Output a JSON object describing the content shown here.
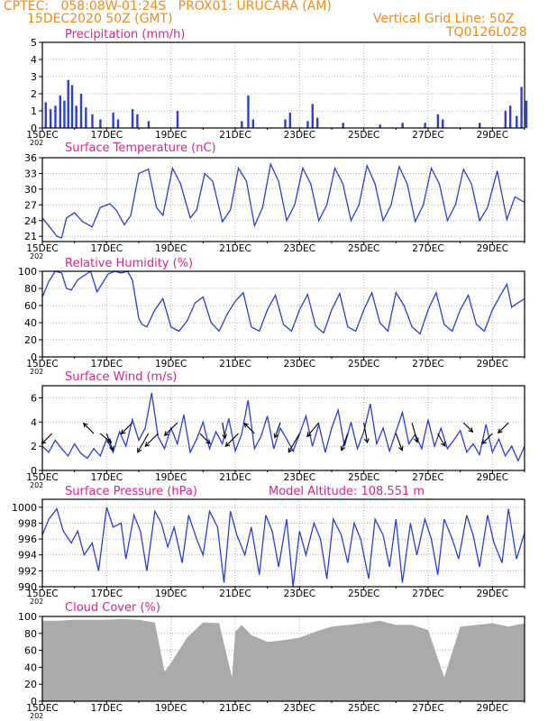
{
  "header": {
    "line1_left": "CPTEC:   058:08W-01:24S   PROX01: URUCARA (AM)",
    "line2_left": "15DEC2020 50Z (GMT)",
    "line2_right": "Vertical Grid Line: 50Z",
    "line3_right": "TQ0126L028"
  },
  "colors": {
    "header": "#f08a1c",
    "title": "#e0228a",
    "series": "#2b3fd8",
    "cloud": "#aaaaaa",
    "grid": "#b0b0b0",
    "arrow": "#000000"
  },
  "x_axis": {
    "tick_labels": [
      "15DEC",
      "17DEC",
      "19DEC",
      "21DEC",
      "23DEC",
      "25DEC",
      "27DEC",
      "29DEC"
    ],
    "year_fragment": "202"
  },
  "chart_data": [
    {
      "type": "bar",
      "title": "Precipitation (mm/h)",
      "ylim": [
        0,
        5
      ],
      "yticks": [
        0,
        1,
        2,
        3,
        4,
        5
      ],
      "grid": true,
      "bars": [
        {
          "day": 0.1,
          "v": 1.5
        },
        {
          "day": 0.25,
          "v": 1.1
        },
        {
          "day": 0.4,
          "v": 1.3
        },
        {
          "day": 0.55,
          "v": 1.9
        },
        {
          "day": 0.68,
          "v": 1.6
        },
        {
          "day": 0.8,
          "v": 2.8
        },
        {
          "day": 0.92,
          "v": 2.5
        },
        {
          "day": 1.05,
          "v": 1.3
        },
        {
          "day": 1.2,
          "v": 2.0
        },
        {
          "day": 1.35,
          "v": 1.2
        },
        {
          "day": 1.55,
          "v": 0.8
        },
        {
          "day": 1.8,
          "v": 0.5
        },
        {
          "day": 2.2,
          "v": 0.9
        },
        {
          "day": 2.35,
          "v": 0.5
        },
        {
          "day": 2.8,
          "v": 1.1
        },
        {
          "day": 2.95,
          "v": 0.8
        },
        {
          "day": 3.3,
          "v": 0.4
        },
        {
          "day": 4.2,
          "v": 1.0
        },
        {
          "day": 6.2,
          "v": 0.4
        },
        {
          "day": 6.4,
          "v": 1.9
        },
        {
          "day": 6.55,
          "v": 0.5
        },
        {
          "day": 7.55,
          "v": 0.5
        },
        {
          "day": 7.7,
          "v": 0.9
        },
        {
          "day": 8.25,
          "v": 0.4
        },
        {
          "day": 8.4,
          "v": 1.4
        },
        {
          "day": 8.55,
          "v": 0.6
        },
        {
          "day": 9.35,
          "v": 0.3
        },
        {
          "day": 10.5,
          "v": 0.2
        },
        {
          "day": 11.2,
          "v": 0.3
        },
        {
          "day": 11.9,
          "v": 0.3
        },
        {
          "day": 12.3,
          "v": 0.8
        },
        {
          "day": 12.45,
          "v": 0.5
        },
        {
          "day": 13.6,
          "v": 0.3
        },
        {
          "day": 14.4,
          "v": 1.0
        },
        {
          "day": 14.55,
          "v": 1.3
        },
        {
          "day": 14.75,
          "v": 0.7
        },
        {
          "day": 14.9,
          "v": 2.4
        },
        {
          "day": 15.05,
          "v": 1.6
        }
      ]
    },
    {
      "type": "line",
      "title": "Surface Temperature (nC)",
      "ylim": [
        20,
        36
      ],
      "yticks": [
        21,
        24,
        27,
        30,
        33,
        36
      ],
      "grid": true,
      "x": [
        0,
        0.2,
        0.45,
        0.6,
        0.75,
        1.0,
        1.25,
        1.55,
        1.8,
        2.1,
        2.3,
        2.55,
        2.75,
        3.0,
        3.3,
        3.55,
        3.75,
        4.05,
        4.3,
        4.6,
        4.8,
        5.05,
        5.3,
        5.6,
        5.85,
        6.1,
        6.35,
        6.6,
        6.85,
        7.1,
        7.35,
        7.6,
        7.85,
        8.1,
        8.35,
        8.6,
        8.85,
        9.1,
        9.35,
        9.6,
        9.85,
        10.1,
        10.35,
        10.6,
        10.85,
        11.1,
        11.35,
        11.6,
        11.85,
        12.1,
        12.35,
        12.6,
        12.85,
        13.1,
        13.35,
        13.6,
        13.85,
        14.15,
        14.45,
        14.7,
        15.0
      ],
      "y": [
        24.5,
        23.0,
        21.0,
        20.7,
        24.5,
        25.5,
        23.8,
        22.8,
        26.5,
        27.2,
        26.0,
        23.2,
        25.0,
        33.0,
        33.8,
        26.5,
        25.0,
        34.0,
        31.0,
        24.5,
        26.0,
        33.0,
        31.5,
        23.8,
        26.0,
        34.0,
        31.5,
        23.0,
        26.5,
        34.8,
        31.5,
        24.0,
        27.0,
        34.0,
        31.0,
        24.0,
        27.0,
        34.0,
        31.0,
        24.0,
        27.0,
        34.5,
        31.0,
        24.0,
        27.0,
        34.3,
        31.0,
        23.8,
        27.0,
        34.0,
        31.0,
        24.0,
        27.0,
        33.8,
        31.0,
        24.0,
        26.5,
        33.5,
        24.2,
        28.5,
        27.5
      ]
    },
    {
      "type": "line",
      "title": "Relative Humidity (%)",
      "ylim": [
        0,
        100
      ],
      "yticks": [
        0,
        20,
        40,
        60,
        80,
        100
      ],
      "grid": true,
      "x": [
        0,
        0.2,
        0.4,
        0.6,
        0.75,
        0.9,
        1.1,
        1.3,
        1.5,
        1.7,
        1.85,
        2.05,
        2.25,
        2.45,
        2.65,
        2.8,
        3.0,
        3.1,
        3.25,
        3.5,
        3.75,
        4.0,
        4.25,
        4.5,
        4.75,
        5.0,
        5.25,
        5.5,
        5.75,
        6.0,
        6.25,
        6.5,
        6.75,
        7.0,
        7.25,
        7.5,
        7.75,
        8.0,
        8.25,
        8.5,
        8.75,
        9.0,
        9.25,
        9.5,
        9.75,
        10.0,
        10.25,
        10.5,
        10.75,
        11.0,
        11.25,
        11.5,
        11.75,
        12.0,
        12.25,
        12.5,
        12.75,
        13.0,
        13.25,
        13.5,
        13.75,
        14.0,
        14.25,
        14.45,
        14.6,
        14.75,
        15.0
      ],
      "y": [
        70,
        88,
        100,
        98,
        80,
        78,
        90,
        95,
        100,
        76,
        85,
        97,
        100,
        98,
        100,
        90,
        45,
        38,
        35,
        55,
        68,
        35,
        30,
        42,
        63,
        70,
        40,
        30,
        50,
        65,
        75,
        35,
        30,
        55,
        72,
        38,
        30,
        55,
        73,
        36,
        28,
        55,
        74,
        35,
        30,
        55,
        75,
        40,
        30,
        75,
        60,
        35,
        27,
        55,
        75,
        38,
        30,
        55,
        72,
        38,
        30,
        55,
        72,
        85,
        58,
        62,
        68
      ]
    },
    {
      "type": "line",
      "title": "Surface Wind (m/s)",
      "ylim": [
        0,
        7
      ],
      "yticks": [
        0,
        2,
        4,
        6
      ],
      "grid": true,
      "x": [
        0,
        0.2,
        0.4,
        0.6,
        0.8,
        1.0,
        1.2,
        1.4,
        1.6,
        1.8,
        2.0,
        2.2,
        2.4,
        2.6,
        2.8,
        3.0,
        3.2,
        3.4,
        3.6,
        3.8,
        4.0,
        4.2,
        4.4,
        4.6,
        4.8,
        5.0,
        5.2,
        5.4,
        5.6,
        5.8,
        6.0,
        6.2,
        6.4,
        6.6,
        6.8,
        7.0,
        7.2,
        7.4,
        7.6,
        7.8,
        8.0,
        8.2,
        8.4,
        8.6,
        8.8,
        9.0,
        9.2,
        9.4,
        9.6,
        9.8,
        10.0,
        10.2,
        10.4,
        10.6,
        10.8,
        11.0,
        11.2,
        11.4,
        11.6,
        11.8,
        12.0,
        12.2,
        12.4,
        12.6,
        12.8,
        13.0,
        13.2,
        13.4,
        13.6,
        13.8,
        14.0,
        14.2,
        14.4,
        14.6,
        14.8,
        15.0
      ],
      "y": [
        2.0,
        1.5,
        2.5,
        1.8,
        1.2,
        2.2,
        1.4,
        1.0,
        1.8,
        1.2,
        2.6,
        1.5,
        3.2,
        2.0,
        4.2,
        2.5,
        3.5,
        6.4,
        2.8,
        1.8,
        3.5,
        2.2,
        4.6,
        1.5,
        2.6,
        4.0,
        1.8,
        3.2,
        2.2,
        4.3,
        1.6,
        3.0,
        5.8,
        1.8,
        2.8,
        4.5,
        1.8,
        3.5,
        2.6,
        1.6,
        3.0,
        4.5,
        2.0,
        3.8,
        1.5,
        3.5,
        5.0,
        2.0,
        4.0,
        1.8,
        3.2,
        5.5,
        2.2,
        3.5,
        1.6,
        3.2,
        4.8,
        2.2,
        3.0,
        1.8,
        4.2,
        2.0,
        3.5,
        1.8,
        2.5,
        3.3,
        1.5,
        2.2,
        1.3,
        3.8,
        1.5,
        2.6,
        1.2,
        2.0,
        0.8,
        2.0
      ]
    },
    {
      "type": "line",
      "title": "Surface Pressure (hPa)",
      "annotation": "Model Altitude: 108.551  m",
      "ylim": [
        990,
        1001
      ],
      "yticks": [
        990,
        992,
        994,
        996,
        998,
        1000
      ],
      "grid": true,
      "x": [
        0,
        0.2,
        0.45,
        0.65,
        0.9,
        1.1,
        1.3,
        1.55,
        1.75,
        2.0,
        2.2,
        2.45,
        2.6,
        2.85,
        3.05,
        3.25,
        3.5,
        3.7,
        3.9,
        4.1,
        4.35,
        4.55,
        4.8,
        5.0,
        5.2,
        5.45,
        5.65,
        5.85,
        6.05,
        6.3,
        6.5,
        6.75,
        6.95,
        7.15,
        7.35,
        7.6,
        7.8,
        8.0,
        8.2,
        8.45,
        8.65,
        8.85,
        9.05,
        9.3,
        9.5,
        9.7,
        9.9,
        10.15,
        10.35,
        10.6,
        10.8,
        11.0,
        11.2,
        11.45,
        11.65,
        11.9,
        12.1,
        12.3,
        12.5,
        12.75,
        12.95,
        13.2,
        13.4,
        13.6,
        13.85,
        14.05,
        14.3,
        14.5,
        14.75,
        15.0
      ],
      "y": [
        996.5,
        998.5,
        999.8,
        997.0,
        995.5,
        997.0,
        994.0,
        995.5,
        992.0,
        1000.0,
        997.5,
        998.0,
        993.5,
        999.0,
        997.0,
        992.0,
        999.5,
        998.0,
        995.0,
        997.5,
        993.0,
        999.0,
        996.0,
        994.0,
        999.5,
        997.5,
        990.5,
        999.5,
        996.5,
        994.0,
        997.5,
        991.5,
        999.0,
        997.0,
        992.5,
        998.5,
        990.0,
        997.0,
        994.0,
        998.0,
        996.0,
        991.0,
        998.5,
        996.5,
        993.0,
        998.0,
        996.0,
        991.0,
        998.5,
        996.5,
        992.5,
        998.5,
        990.5,
        998.0,
        994.0,
        998.5,
        996.0,
        991.5,
        998.5,
        996.0,
        993.5,
        999.0,
        996.5,
        992.5,
        999.0,
        995.5,
        993.0,
        999.8,
        993.5,
        996.8
      ]
    },
    {
      "type": "bar",
      "title": "Cloud Cover (%)",
      "ylim": [
        0,
        100
      ],
      "yticks": [
        0,
        20,
        40,
        60,
        80,
        100
      ],
      "grid": true,
      "x": [
        0,
        0.5,
        1.0,
        1.5,
        2.0,
        2.5,
        3.0,
        3.5,
        3.8,
        4.0,
        4.5,
        5.0,
        5.5,
        5.9,
        6.0,
        6.2,
        6.5,
        7.0,
        7.5,
        8.0,
        8.5,
        9.0,
        9.5,
        10.0,
        10.5,
        11.0,
        11.5,
        12.0,
        12.5,
        13.0,
        13.5,
        14.0,
        14.5,
        15.0
      ],
      "y": [
        95,
        95,
        96,
        96,
        96,
        97,
        96,
        93,
        35,
        45,
        75,
        93,
        92,
        28,
        82,
        90,
        78,
        70,
        72,
        75,
        82,
        88,
        90,
        92,
        95,
        90,
        90,
        84,
        28,
        88,
        90,
        92,
        88,
        92
      ]
    }
  ],
  "wind_arrows": [
    {
      "day": 0.3,
      "dir_deg": 225,
      "speed": 2.0
    },
    {
      "day": 1.6,
      "dir_deg": 315,
      "speed": 2.0
    },
    {
      "day": 1.8,
      "dir_deg": 130,
      "speed": 2.0
    },
    {
      "day": 2.0,
      "dir_deg": 160,
      "speed": 2.5
    },
    {
      "day": 2.8,
      "dir_deg": 225,
      "speed": 2.2
    },
    {
      "day": 3.3,
      "dir_deg": 210,
      "speed": 3.0
    },
    {
      "day": 3.6,
      "dir_deg": 225,
      "speed": 2.5
    },
    {
      "day": 4.2,
      "dir_deg": 225,
      "speed": 2.5
    },
    {
      "day": 4.9,
      "dir_deg": 135,
      "speed": 2.0
    },
    {
      "day": 5.6,
      "dir_deg": 170,
      "speed": 2.2
    },
    {
      "day": 6.1,
      "dir_deg": 225,
      "speed": 2.5
    },
    {
      "day": 6.6,
      "dir_deg": 315,
      "speed": 2.0
    },
    {
      "day": 7.4,
      "dir_deg": 200,
      "speed": 2.2
    },
    {
      "day": 8.0,
      "dir_deg": 210,
      "speed": 3.0
    },
    {
      "day": 8.6,
      "dir_deg": 220,
      "speed": 2.5
    },
    {
      "day": 9.5,
      "dir_deg": 200,
      "speed": 2.5
    },
    {
      "day": 10.0,
      "dir_deg": 170,
      "speed": 2.8
    },
    {
      "day": 11.0,
      "dir_deg": 160,
      "speed": 2.5
    },
    {
      "day": 11.5,
      "dir_deg": 165,
      "speed": 2.8
    },
    {
      "day": 12.3,
      "dir_deg": 150,
      "speed": 2.0
    },
    {
      "day": 13.1,
      "dir_deg": 135,
      "speed": 1.8
    },
    {
      "day": 14.0,
      "dir_deg": 225,
      "speed": 2.0
    },
    {
      "day": 14.5,
      "dir_deg": 225,
      "speed": 2.0
    }
  ]
}
